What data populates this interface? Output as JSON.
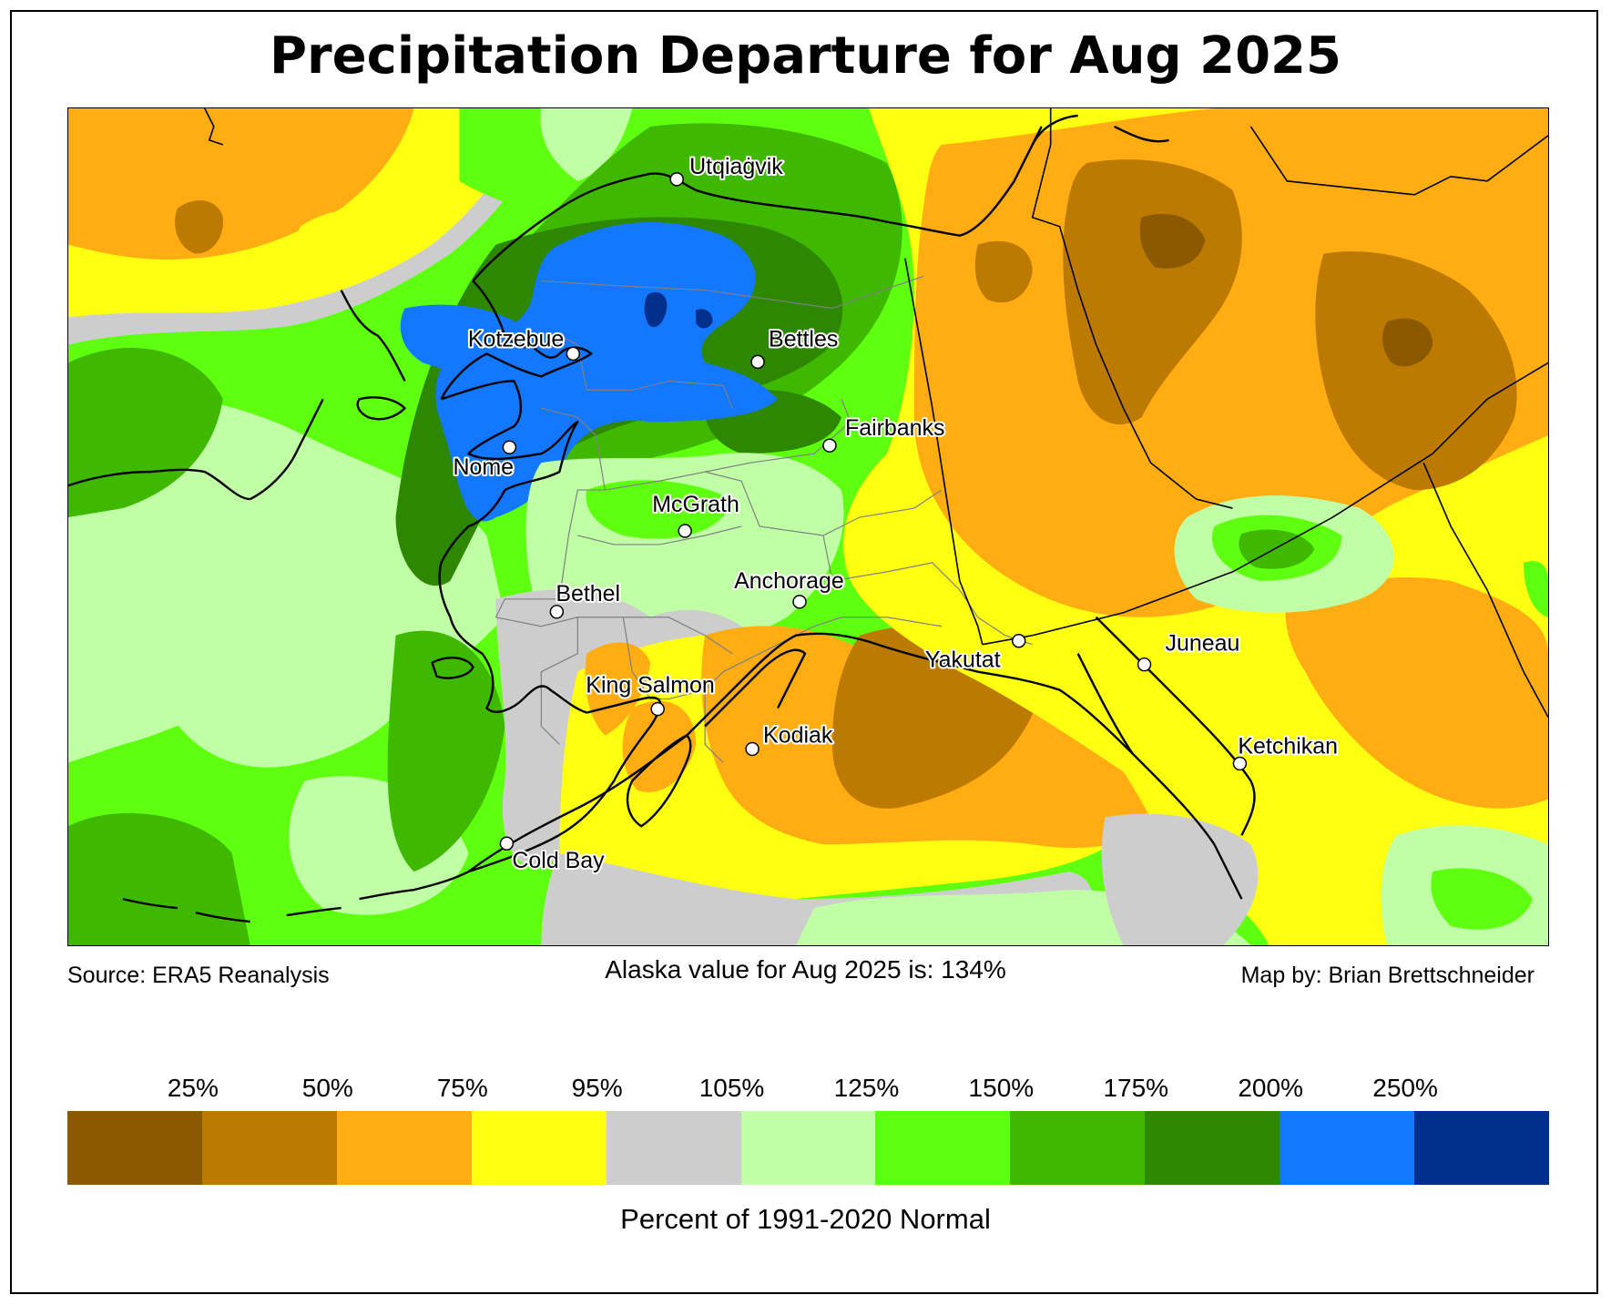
{
  "title": "Precipitation Departure for Aug 2025",
  "captions": {
    "source": "Source: ERA5 Reanalysis",
    "statewide": "Alaska value for Aug 2025 is: 134%",
    "credit": "Map by: Brian Brettschneider"
  },
  "map": {
    "region": "Alaska",
    "statewide_percent_of_normal": 134,
    "cities": [
      {
        "name": "Utqiaġvik",
        "label_side": "right-above"
      },
      {
        "name": "Kotzebue",
        "label_side": "left-above"
      },
      {
        "name": "Bettles",
        "label_side": "right-above"
      },
      {
        "name": "Fairbanks",
        "label_side": "right-above"
      },
      {
        "name": "Nome",
        "label_side": "below"
      },
      {
        "name": "McGrath",
        "label_side": "above"
      },
      {
        "name": "Bethel",
        "label_side": "right-above"
      },
      {
        "name": "Anchorage",
        "label_side": "above"
      },
      {
        "name": "King Salmon",
        "label_side": "above"
      },
      {
        "name": "Kodiak",
        "label_side": "right-above"
      },
      {
        "name": "Cold Bay",
        "label_side": "right-below"
      },
      {
        "name": "Yakutat",
        "label_side": "left-below"
      },
      {
        "name": "Juneau",
        "label_side": "right-above"
      },
      {
        "name": "Ketchikan",
        "label_side": "right-above"
      }
    ]
  },
  "legend": {
    "label": "Percent of 1991-2020 Normal",
    "ticks": [
      "25%",
      "50%",
      "75%",
      "95%",
      "105%",
      "125%",
      "150%",
      "175%",
      "200%",
      "250%"
    ],
    "colors": [
      "#8b5a00",
      "#bd7a00",
      "#ffad12",
      "#ffff12",
      "#cdcdcd",
      "#c0ffa6",
      "#5fff10",
      "#3fb900",
      "#2e8700",
      "#1378ff",
      "#00308b"
    ]
  }
}
